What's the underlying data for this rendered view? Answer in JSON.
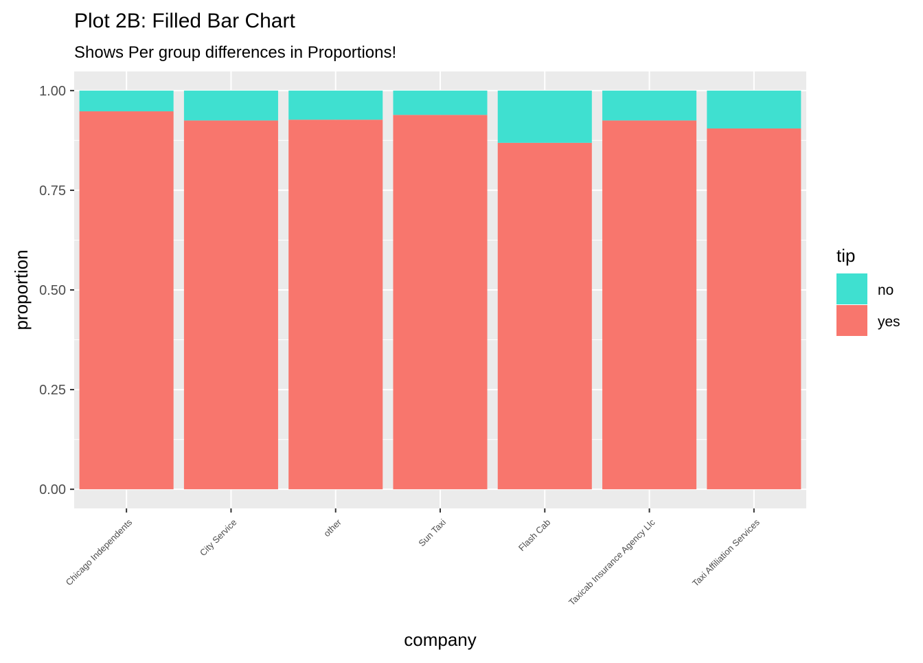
{
  "chart_data": {
    "type": "bar",
    "stacked": "fill",
    "title": "Plot 2B: Filled Bar Chart",
    "subtitle": "Shows Per group differences in Proportions!",
    "xlabel": "company",
    "ylabel": "proportion",
    "categories": [
      "Chicago Independents",
      "City Service",
      "other",
      "Sun Taxi",
      "Flash Cab",
      "Taxicab Insurance Agency Llc",
      "Taxi Affiliation Services"
    ],
    "series": [
      {
        "name": "yes",
        "color": "#F8766D",
        "values": [
          0.948,
          0.925,
          0.927,
          0.939,
          0.869,
          0.925,
          0.905
        ]
      },
      {
        "name": "no",
        "color": "#3FE0D0",
        "values": [
          0.052,
          0.075,
          0.073,
          0.061,
          0.131,
          0.075,
          0.095
        ]
      }
    ],
    "ylim": [
      -0.048,
      1.048
    ],
    "yticks": [
      0.0,
      0.25,
      0.5,
      0.75,
      1.0
    ],
    "ytick_labels": [
      "0.00",
      "0.25",
      "0.50",
      "0.75",
      "1.00"
    ],
    "legend": {
      "title": "tip",
      "placement": "right",
      "entries": [
        {
          "label": "no",
          "color": "#3FE0D0"
        },
        {
          "label": "yes",
          "color": "#F8766D"
        }
      ]
    },
    "grid": true,
    "panel_background": "#EBEBEB"
  }
}
